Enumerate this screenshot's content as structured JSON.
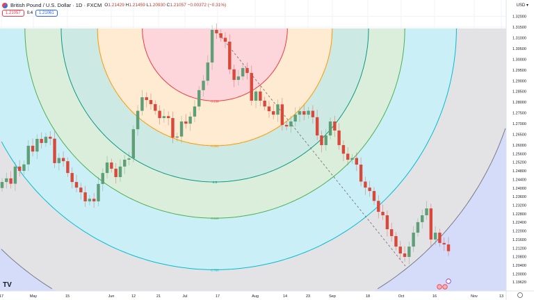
{
  "header": {
    "symbol_title": "British Pound / U.S. Dollar · 1D · FXCM",
    "open_label": "O",
    "open": "1.21429",
    "high_label": "H",
    "high": "1.21459",
    "low_label": "L",
    "low": "1.20930",
    "close_label": "C",
    "close": "1.21057",
    "change": "−0.00372 (−0.31%)",
    "bid": "1.21057",
    "spread": "0.4",
    "ask": "1.21061"
  },
  "price_axis": {
    "currency": "USD ▾",
    "labels": [
      "1.32000",
      "1.31500",
      "1.31000",
      "1.30500",
      "1.30000",
      "1.29500",
      "1.29000",
      "1.28500",
      "1.28000",
      "1.27500",
      "1.27000",
      "1.26500",
      "1.26000",
      "1.25600",
      "1.25200",
      "1.24800",
      "1.24400",
      "1.24000",
      "1.23600",
      "1.23200",
      "1.22800",
      "1.22400",
      "1.22000",
      "1.21600",
      "1.21200",
      "1.20800",
      "1.20400",
      "1.20000",
      "1.19620"
    ]
  },
  "time_axis": {
    "labels": [
      "17",
      "May",
      "15",
      "Jun",
      "12",
      "21",
      "Jul",
      "17",
      "Aug",
      "14",
      "23",
      "Sep",
      "18",
      "Oct",
      "16",
      "Nov",
      "13"
    ]
  },
  "fib_circles": [
    {
      "level": 0.236,
      "label": "0.236",
      "stroke": "#f23645",
      "fill": "#fcd6da"
    },
    {
      "level": 0.382,
      "label": "0.382",
      "stroke": "#ff9800",
      "fill": "#feebd2"
    },
    {
      "level": 0.5,
      "label": "0.5",
      "stroke": "#089981",
      "fill": "#cce9e3"
    },
    {
      "level": 0.618,
      "label": "0.618",
      "stroke": "#4caf50",
      "fill": "#dbeedb"
    },
    {
      "level": 0.786,
      "label": "0.786",
      "stroke": "#00bcd4",
      "fill": "#cbeff6"
    },
    {
      "level": 1,
      "label": "",
      "stroke": "#787b86",
      "fill": "#e3e3e5"
    }
  ],
  "outside_fill": "#d4dcfa",
  "colors": {
    "up": "#5f9f78",
    "down": "#d8493c"
  },
  "candles": {
    "first_open": 1.24,
    "closes": [
      1.2428,
      1.2445,
      1.242,
      1.25,
      1.248,
      1.251,
      1.2597,
      1.257,
      1.2629,
      1.261,
      1.2639,
      1.263,
      1.2516,
      1.254,
      1.2525,
      1.247,
      1.2428,
      1.2402,
      1.238,
      1.2338,
      1.235,
      1.2338,
      1.2419,
      1.247,
      1.2519,
      1.249,
      1.2451,
      1.25,
      1.2532,
      1.2538,
      1.2674,
      1.276,
      1.2823,
      1.281,
      1.2791,
      1.276,
      1.2726,
      1.2735,
      1.2726,
      1.2635,
      1.264,
      1.271,
      1.27,
      1.2733,
      1.278,
      1.2856,
      1.29,
      1.2985,
      1.3137,
      1.3121,
      1.31,
      1.3082,
      1.2953,
      1.2904,
      1.292,
      1.2959,
      1.2936,
      1.2807,
      1.285,
      1.2807,
      1.278,
      1.2758,
      1.2742,
      1.279,
      1.2694,
      1.2687,
      1.271,
      1.2742,
      1.2758,
      1.2742,
      1.276,
      1.273,
      1.2645,
      1.26,
      1.2645,
      1.271,
      1.2668,
      1.26,
      1.256,
      1.2532,
      1.254,
      1.2509,
      1.243,
      1.2402,
      1.2386,
      1.234,
      1.2289,
      1.2273,
      1.2208,
      1.2176,
      1.2127,
      1.2095,
      1.2079,
      1.2127,
      1.2192,
      1.2241,
      1.2273,
      1.2305,
      1.216,
      1.2192,
      1.2144,
      1.2137,
      1.21057
    ]
  },
  "logo": "TV"
}
